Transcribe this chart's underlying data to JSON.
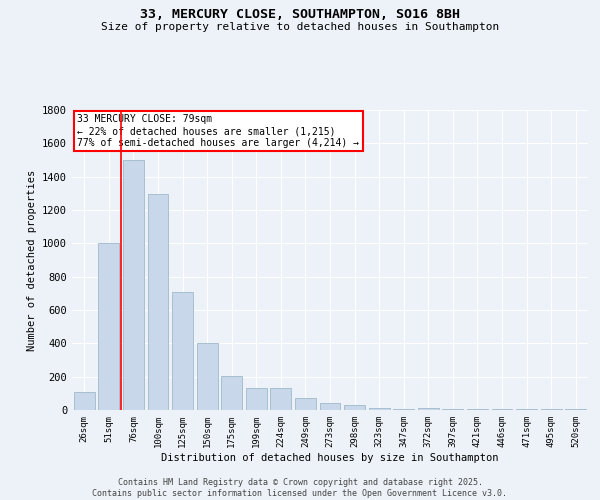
{
  "title": "33, MERCURY CLOSE, SOUTHAMPTON, SO16 8BH",
  "subtitle": "Size of property relative to detached houses in Southampton",
  "xlabel": "Distribution of detached houses by size in Southampton",
  "ylabel": "Number of detached properties",
  "categories": [
    "26sqm",
    "51sqm",
    "76sqm",
    "100sqm",
    "125sqm",
    "150sqm",
    "175sqm",
    "199sqm",
    "224sqm",
    "249sqm",
    "273sqm",
    "298sqm",
    "323sqm",
    "347sqm",
    "372sqm",
    "397sqm",
    "421sqm",
    "446sqm",
    "471sqm",
    "495sqm",
    "520sqm"
  ],
  "values": [
    110,
    1000,
    1500,
    1295,
    710,
    400,
    205,
    135,
    135,
    70,
    40,
    30,
    12,
    8,
    12,
    8,
    5,
    5,
    8,
    5,
    8
  ],
  "bar_color": "#c8d8ea",
  "bar_edge_color": "#a8bfcf",
  "background_color": "#edf2f8",
  "vline_x_idx": 2,
  "annotation_text": "33 MERCURY CLOSE: 79sqm\n← 22% of detached houses are smaller (1,215)\n77% of semi-detached houses are larger (4,214) →",
  "annotation_box_color": "white",
  "annotation_box_edge_color": "red",
  "footer_line1": "Contains HM Land Registry data © Crown copyright and database right 2025.",
  "footer_line2": "Contains public sector information licensed under the Open Government Licence v3.0.",
  "ylim": [
    0,
    1800
  ],
  "yticks": [
    0,
    200,
    400,
    600,
    800,
    1000,
    1200,
    1400,
    1600,
    1800
  ]
}
